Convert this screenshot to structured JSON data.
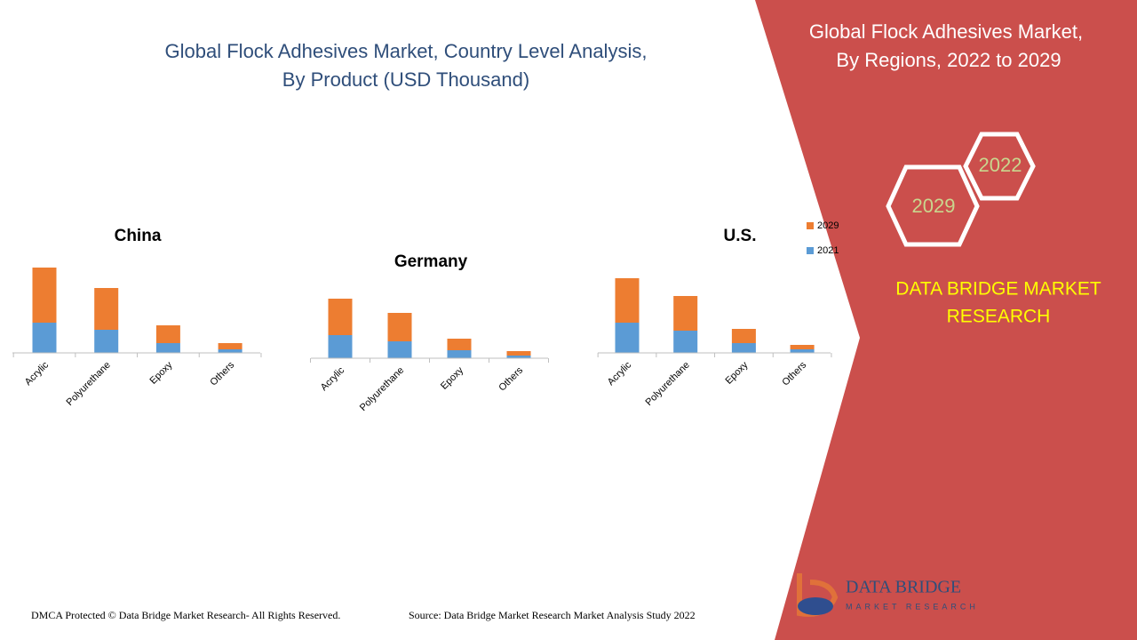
{
  "header": {
    "title_line1": "Global Flock Adhesives Market, Country Level Analysis,",
    "title_line2": "By Product (USD Thousand)"
  },
  "chart_data": [
    {
      "type": "bar",
      "stacked": true,
      "title": "China",
      "categories": [
        "Acrylic",
        "Polyurethane",
        "Epoxy",
        "Others"
      ],
      "series": [
        {
          "name": "2021",
          "color": "#5b9bd5",
          "values": [
            34,
            26,
            11,
            4
          ]
        },
        {
          "name": "2029",
          "color": "#ed7d31",
          "values": [
            62,
            47,
            20,
            7
          ]
        }
      ]
    },
    {
      "type": "bar",
      "stacked": true,
      "title": "Germany",
      "categories": [
        "Acrylic",
        "Polyurethane",
        "Epoxy",
        "Others"
      ],
      "series": [
        {
          "name": "2021",
          "color": "#5b9bd5",
          "values": [
            26,
            19,
            9,
            3
          ]
        },
        {
          "name": "2029",
          "color": "#ed7d31",
          "values": [
            41,
            32,
            13,
            5
          ]
        }
      ]
    },
    {
      "type": "bar",
      "stacked": true,
      "title": "U.S.",
      "categories": [
        "Acrylic",
        "Polyurethane",
        "Epoxy",
        "Others"
      ],
      "series": [
        {
          "name": "2021",
          "color": "#5b9bd5",
          "values": [
            34,
            25,
            11,
            4
          ]
        },
        {
          "name": "2029",
          "color": "#ed7d31",
          "values": [
            50,
            39,
            16,
            5
          ]
        }
      ]
    }
  ],
  "panel": {
    "title_line1": "Global Flock Adhesives Market,",
    "title_line2": "By Regions, 2022 to 2029",
    "hex1": "2022",
    "hex2": "2029",
    "brand_line1": "DATA BRIDGE MARKET",
    "brand_line2": "RESEARCH"
  },
  "logo": {
    "name": "DATA BRIDGE",
    "sub": "MARKET RESEARCH"
  },
  "footer": {
    "left": "DMCA Protected © Data Bridge Market Research- All Rights Reserved.",
    "right": "Source: Data Bridge Market Research Market Analysis Study 2022"
  }
}
